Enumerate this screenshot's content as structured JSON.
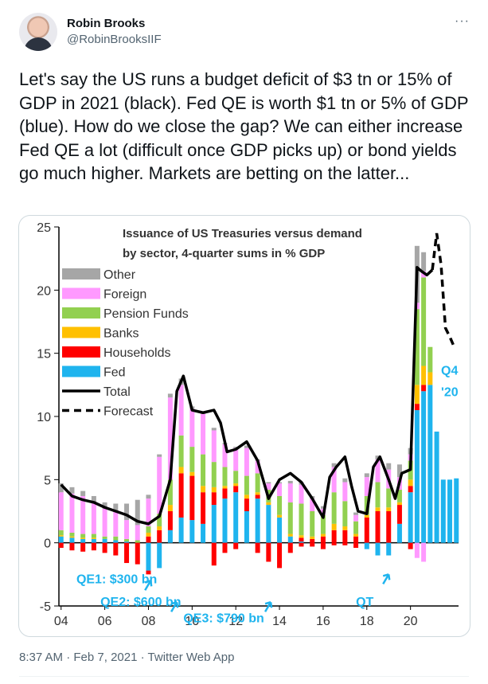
{
  "author": {
    "name": "Robin Brooks",
    "handle": "@RobinBrooksIIF"
  },
  "more_icon": "···",
  "tweet_text": "Let's say the US runs a budget deficit of $3 tn or 15% of GDP in 2021 (black). Fed QE is worth $1 tn or 5% of GDP (blue). How do we close the gap? We can either increase Fed QE a lot (difficult once GDP picks up) or bond yields go much higher. Markets are betting on the latter...",
  "footer": {
    "time": "8:37 AM",
    "date": "Feb 7, 2021",
    "app": "Twitter Web App",
    "sep": "·"
  },
  "chart_data": {
    "type": "bar",
    "title_line1": "Issuance of US Treasuries versus demand",
    "title_line2": "by sector, 4-quarter sums in % GDP",
    "x_ticks": [
      "04",
      "06",
      "08",
      "10",
      "12",
      "14",
      "16",
      "18",
      "20"
    ],
    "x_tick_values": [
      2004,
      2006,
      2008,
      2010,
      2012,
      2014,
      2016,
      2018,
      2020
    ],
    "y_ticks": [
      "25",
      "20",
      "15",
      "10",
      "5",
      "0",
      "-5"
    ],
    "y_tick_values": [
      25,
      20,
      15,
      10,
      5,
      0,
      -5
    ],
    "ylim": [
      -5,
      25
    ],
    "xlim": [
      2003.9,
      2022.2
    ],
    "colors": {
      "Other": "#a6a6a6",
      "Foreign": "#ff99ff",
      "Pension Funds": "#92d050",
      "Banks": "#ffc000",
      "Households": "#ff0000",
      "Fed": "#1fb4ee",
      "Total": "#000000"
    },
    "legend": [
      "Other",
      "Foreign",
      "Pension Funds",
      "Banks",
      "Households",
      "Fed",
      "Total",
      "Forecast"
    ],
    "annotations": [
      {
        "text": "Q4",
        "x": 2021.4,
        "y": 13.3,
        "color": "#1fb4ee"
      },
      {
        "text": "'20",
        "x": 2021.4,
        "y": 11.6,
        "color": "#1fb4ee"
      },
      {
        "text": "QE1: $300 bn",
        "x": 2004.7,
        "y": -3.2,
        "color": "#1fb4ee"
      },
      {
        "text": "QE2: $600 bn",
        "x": 2005.8,
        "y": -5.0,
        "color": "#1fb4ee"
      },
      {
        "text": "QE3: $790 bn",
        "x": 2009.6,
        "y": -6.3,
        "color": "#1fb4ee"
      },
      {
        "text": "QT",
        "x": 2017.5,
        "y": -5.0,
        "color": "#1fb4ee"
      }
    ],
    "arrows": [
      [
        2008.1,
        -3.0
      ],
      [
        2009.3,
        -4.7
      ],
      [
        2013.6,
        -4.7
      ],
      [
        2019.0,
        -2.5
      ]
    ],
    "total_x": [
      2004.0,
      2004.5,
      2005.0,
      2005.5,
      2006.0,
      2006.5,
      2007.0,
      2007.5,
      2008.0,
      2008.5,
      2009.0,
      2009.3,
      2009.6,
      2010.0,
      2010.5,
      2011.0,
      2011.3,
      2011.6,
      2012.0,
      2012.5,
      2013.0,
      2013.5,
      2014.0,
      2014.5,
      2015.0,
      2015.5,
      2016.0,
      2016.3,
      2016.6,
      2017.0,
      2017.3,
      2017.6,
      2018.0,
      2018.3,
      2018.6,
      2019.0,
      2019.3,
      2019.6,
      2020.0,
      2020.3,
      2020.5,
      2020.75,
      2021.0
    ],
    "total_y": [
      4.6,
      3.7,
      3.4,
      3.2,
      2.8,
      2.5,
      2.2,
      1.7,
      1.5,
      2.1,
      5.0,
      12.0,
      13.2,
      10.5,
      10.3,
      10.5,
      9.5,
      7.2,
      7.4,
      8.0,
      6.5,
      3.5,
      5.0,
      5.5,
      4.8,
      3.5,
      2.0,
      5.2,
      6.0,
      6.8,
      4.5,
      2.5,
      2.3,
      6.0,
      6.8,
      5.0,
      3.5,
      5.5,
      5.8,
      21.8,
      21.5,
      21.2,
      21.6
    ],
    "forecast_x": [
      2021.0,
      2021.2,
      2021.4,
      2021.6,
      2021.8,
      2022.0
    ],
    "forecast_y": [
      21.6,
      24.5,
      22.0,
      17.0,
      16.3,
      15.5
    ],
    "bars": [
      {
        "x": 2004.0,
        "stack": {
          "Fed": 0.5,
          "Households": 0,
          "Banks": 0.1,
          "Pension Funds": 0.4,
          "Foreign": 3.0,
          "Other": 0.7
        },
        "neg": {
          "Households": 0.4
        }
      },
      {
        "x": 2004.5,
        "stack": {
          "Fed": 0.4,
          "Households": 0,
          "Banks": 0.1,
          "Pension Funds": 0.3,
          "Foreign": 3.1,
          "Other": 0.5
        },
        "neg": {
          "Households": 0.6
        }
      },
      {
        "x": 2005.0,
        "stack": {
          "Fed": 0.3,
          "Households": 0,
          "Banks": 0.1,
          "Pension Funds": 0.3,
          "Foreign": 3.0,
          "Other": 0.4
        },
        "neg": {
          "Households": 0.7
        }
      },
      {
        "x": 2005.5,
        "stack": {
          "Fed": 0.3,
          "Households": 0,
          "Banks": 0.1,
          "Pension Funds": 0.3,
          "Foreign": 2.5,
          "Other": 0.5
        },
        "neg": {
          "Households": 0.6
        }
      },
      {
        "x": 2006.0,
        "stack": {
          "Fed": 0.3,
          "Households": 0,
          "Banks": 0.0,
          "Pension Funds": 0.2,
          "Foreign": 2.2,
          "Other": 0.5
        },
        "neg": {
          "Households": 0.8
        }
      },
      {
        "x": 2006.5,
        "stack": {
          "Fed": 0.2,
          "Households": 0,
          "Banks": 0.0,
          "Pension Funds": 0.3,
          "Foreign": 2.0,
          "Other": 0.6
        },
        "neg": {
          "Households": 1.0
        }
      },
      {
        "x": 2007.0,
        "stack": {
          "Fed": 0.1,
          "Households": 0,
          "Banks": 0.0,
          "Pension Funds": 0.2,
          "Foreign": 1.5,
          "Other": 1.3
        },
        "neg": {
          "Households": 1.6
        }
      },
      {
        "x": 2007.5,
        "stack": {
          "Fed": 0.0,
          "Households": 0,
          "Banks": 0.0,
          "Pension Funds": 0.2,
          "Foreign": 1.2,
          "Other": 2.0
        },
        "neg": {
          "Households": 1.7
        }
      },
      {
        "x": 2008.0,
        "stack": {
          "Fed": 0,
          "Households": 0.5,
          "Banks": 0.3,
          "Pension Funds": 0.5,
          "Foreign": 2.2,
          "Other": 0.3
        },
        "neg": {
          "Fed": 2.2,
          "Households": 0.3
        }
      },
      {
        "x": 2008.5,
        "stack": {
          "Fed": 0,
          "Households": 1.0,
          "Banks": 0.3,
          "Pension Funds": 1.0,
          "Foreign": 4.5,
          "Other": 0.2
        },
        "neg": {
          "Fed": 2.0
        }
      },
      {
        "x": 2009.0,
        "stack": {
          "Fed": 1.0,
          "Households": 1.5,
          "Banks": 0.5,
          "Pension Funds": 2.0,
          "Foreign": 6.5,
          "Other": 0.3
        },
        "neg": {}
      },
      {
        "x": 2009.5,
        "stack": {
          "Fed": 2.0,
          "Households": 3.5,
          "Banks": 0.5,
          "Pension Funds": 2.5,
          "Foreign": 4.0,
          "Other": 0.5
        },
        "neg": {}
      },
      {
        "x": 2010.0,
        "stack": {
          "Fed": 1.8,
          "Households": 3.5,
          "Banks": 0.3,
          "Pension Funds": 2.0,
          "Foreign": 3.0,
          "Other": 0.2
        },
        "neg": {}
      },
      {
        "x": 2010.5,
        "stack": {
          "Fed": 1.5,
          "Households": 2.5,
          "Banks": 0.5,
          "Pension Funds": 2.5,
          "Foreign": 3.2,
          "Other": 0.2
        },
        "neg": {}
      },
      {
        "x": 2011.0,
        "stack": {
          "Fed": 3.0,
          "Households": 1.0,
          "Banks": 0.4,
          "Pension Funds": 2.0,
          "Foreign": 2.5,
          "Other": 0.2
        },
        "neg": {
          "Households": 1.8
        }
      },
      {
        "x": 2011.5,
        "stack": {
          "Fed": 3.5,
          "Households": 0.8,
          "Banks": 0.2,
          "Pension Funds": 1.5,
          "Foreign": 1.8,
          "Other": 0.1
        },
        "neg": {
          "Households": 0.8
        }
      },
      {
        "x": 2012.0,
        "stack": {
          "Fed": 4.0,
          "Households": 0.5,
          "Banks": 0.2,
          "Pension Funds": 1.0,
          "Foreign": 1.8,
          "Other": 0.1
        },
        "neg": {
          "Households": 0.5
        }
      },
      {
        "x": 2012.5,
        "stack": {
          "Fed": 2.5,
          "Households": 1.0,
          "Banks": 0.3,
          "Pension Funds": 1.5,
          "Foreign": 2.2,
          "Other": 0.2
        },
        "neg": {}
      },
      {
        "x": 2013.0,
        "stack": {
          "Fed": 3.5,
          "Households": 0.3,
          "Banks": 0.2,
          "Pension Funds": 1.5,
          "Foreign": 1.0,
          "Other": 0.1
        },
        "neg": {
          "Households": 0.8
        }
      },
      {
        "x": 2013.5,
        "stack": {
          "Fed": 3.0,
          "Households": 0,
          "Banks": 0.2,
          "Pension Funds": 1.0,
          "Foreign": 0.5,
          "Other": 0.1
        },
        "neg": {
          "Households": 1.5
        }
      },
      {
        "x": 2014.0,
        "stack": {
          "Fed": 2.0,
          "Households": 0,
          "Banks": 0.2,
          "Pension Funds": 1.5,
          "Foreign": 1.0,
          "Other": 0.1
        },
        "neg": {
          "Households": 2.0
        }
      },
      {
        "x": 2014.5,
        "stack": {
          "Fed": 0.5,
          "Households": 0,
          "Banks": 0.2,
          "Pension Funds": 2.5,
          "Foreign": 1.5,
          "Other": 0.2
        },
        "neg": {
          "Households": 0.8
        }
      },
      {
        "x": 2015.0,
        "stack": {
          "Fed": 0.1,
          "Households": 0.3,
          "Banks": 0.2,
          "Pension Funds": 2.5,
          "Foreign": 1.5,
          "Other": 0.2
        },
        "neg": {
          "Households": 0.3
        }
      },
      {
        "x": 2015.5,
        "stack": {
          "Fed": 0,
          "Households": 0.3,
          "Banks": 0.2,
          "Pension Funds": 2.0,
          "Foreign": 1.0,
          "Other": 0.2
        },
        "neg": {
          "Households": 0.3
        }
      },
      {
        "x": 2016.0,
        "stack": {
          "Fed": 0,
          "Households": 0.5,
          "Banks": 0.2,
          "Pension Funds": 1.5,
          "Foreign": 0.5,
          "Other": 0.2
        },
        "neg": {
          "Households": 0.5
        }
      },
      {
        "x": 2016.5,
        "stack": {
          "Fed": 0,
          "Households": 1.0,
          "Banks": 0.5,
          "Pension Funds": 2.5,
          "Foreign": 2.0,
          "Other": 0.3
        },
        "neg": {
          "Households": 0.2
        }
      },
      {
        "x": 2017.0,
        "stack": {
          "Fed": 0,
          "Households": 1.0,
          "Banks": 0.3,
          "Pension Funds": 2.0,
          "Foreign": 1.5,
          "Other": 0.3
        },
        "neg": {
          "Households": 0.2
        }
      },
      {
        "x": 2017.5,
        "stack": {
          "Fed": 0,
          "Households": 0.5,
          "Banks": 0.2,
          "Pension Funds": 1.0,
          "Foreign": 0.5,
          "Other": 0.2
        },
        "neg": {
          "Households": 0.4
        }
      },
      {
        "x": 2018.0,
        "stack": {
          "Fed": 0,
          "Households": 2.0,
          "Banks": 0.2,
          "Pension Funds": 1.5,
          "Foreign": 1.5,
          "Other": 0.3
        },
        "neg": {
          "Fed": 0.5
        }
      },
      {
        "x": 2018.5,
        "stack": {
          "Fed": 0,
          "Households": 2.5,
          "Banks": 0.3,
          "Pension Funds": 2.0,
          "Foreign": 1.8,
          "Other": 0.3
        },
        "neg": {
          "Fed": 1.0
        }
      },
      {
        "x": 2019.0,
        "stack": {
          "Fed": 0,
          "Households": 2.5,
          "Banks": 0.3,
          "Pension Funds": 1.5,
          "Foreign": 1.5,
          "Other": 0.5
        },
        "neg": {
          "Fed": 1.0
        }
      },
      {
        "x": 2019.5,
        "stack": {
          "Fed": 1.5,
          "Households": 1.5,
          "Banks": 0.2,
          "Pension Funds": 1.0,
          "Foreign": 1.0,
          "Other": 1.0
        },
        "neg": {}
      },
      {
        "x": 2020.0,
        "stack": {
          "Fed": 4.0,
          "Households": 0.5,
          "Banks": 0.5,
          "Pension Funds": 1.5,
          "Foreign": 0.5,
          "Other": 0.5
        },
        "neg": {
          "Households": 0.5
        }
      },
      {
        "x": 2020.3,
        "stack": {
          "Fed": 10.5,
          "Households": 0.5,
          "Banks": 1.5,
          "Pension Funds": 6.0,
          "Foreign": 0.5,
          "Other": 4.5
        },
        "neg": {
          "Foreign": 1.2
        }
      },
      {
        "x": 2020.6,
        "stack": {
          "Fed": 12.0,
          "Households": 0.5,
          "Banks": 1.5,
          "Pension Funds": 7.0,
          "Foreign": 0.5,
          "Other": 1.5
        },
        "neg": {
          "Foreign": 1.5
        }
      },
      {
        "x": 2020.9,
        "stack": {
          "Fed": 12.5,
          "Households": 0,
          "Banks": 1.0,
          "Pension Funds": 2.0,
          "Foreign": 0,
          "Other": 0
        },
        "neg": {}
      },
      {
        "x": 2021.2,
        "stack": {
          "Fed": 8.8,
          "Households": 0,
          "Banks": 0,
          "Pension Funds": 0,
          "Foreign": 0,
          "Other": 0
        },
        "neg": {}
      },
      {
        "x": 2021.5,
        "stack": {
          "Fed": 5.0,
          "Households": 0,
          "Banks": 0,
          "Pension Funds": 0,
          "Foreign": 0,
          "Other": 0
        },
        "neg": {}
      },
      {
        "x": 2021.8,
        "stack": {
          "Fed": 5.0,
          "Households": 0,
          "Banks": 0,
          "Pension Funds": 0,
          "Foreign": 0,
          "Other": 0
        },
        "neg": {}
      },
      {
        "x": 2022.1,
        "stack": {
          "Fed": 5.1,
          "Households": 0,
          "Banks": 0,
          "Pension Funds": 0,
          "Foreign": 0,
          "Other": 0
        },
        "neg": {}
      }
    ]
  }
}
